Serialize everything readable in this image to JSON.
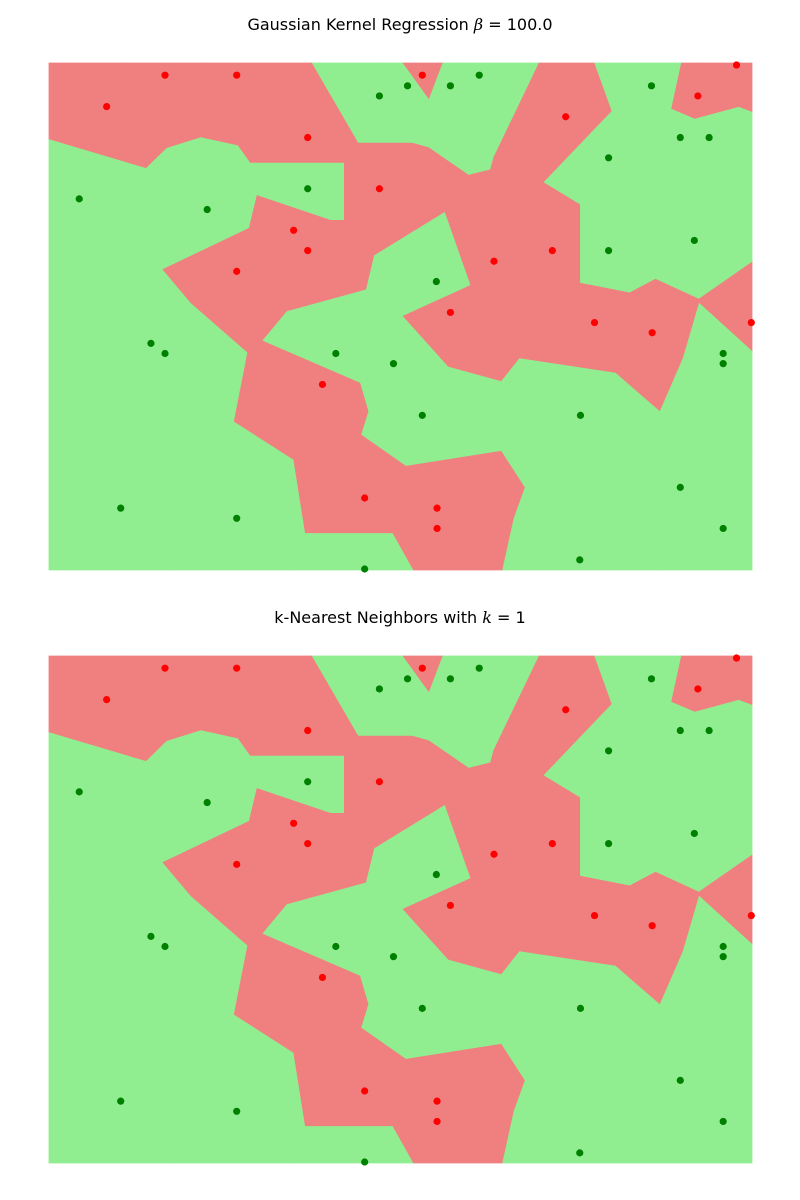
{
  "colors": {
    "class_red_region": "#f08080",
    "class_green_region": "#90ee90",
    "class_red_point": "#ff0000",
    "class_green_point": "#008000"
  },
  "chart_data": [
    {
      "type": "scatter",
      "title_prefix": "Gaussian Kernel Regression ",
      "title_symbol": "β",
      "title_suffix": " = 100.0",
      "xlabel": "",
      "ylabel": "",
      "axes_visible": false,
      "background": "decision-regions",
      "xlim": [
        0,
        1
      ],
      "ylim": [
        0,
        1
      ],
      "series": [
        {
          "class": "red",
          "points": [
            [
              0.165,
              0.976
            ],
            [
              0.267,
              0.976
            ],
            [
              0.531,
              0.976
            ],
            [
              0.978,
              0.996
            ],
            [
              0.082,
              0.914
            ],
            [
              0.923,
              0.935
            ],
            [
              0.735,
              0.894
            ],
            [
              0.368,
              0.853
            ],
            [
              0.47,
              0.752
            ],
            [
              0.348,
              0.67
            ],
            [
              0.368,
              0.63
            ],
            [
              0.716,
              0.63
            ],
            [
              0.633,
              0.609
            ],
            [
              0.267,
              0.589
            ],
            [
              0.571,
              0.508
            ],
            [
              0.776,
              0.488
            ],
            [
              0.858,
              0.468
            ],
            [
              0.999,
              0.488
            ],
            [
              0.389,
              0.366
            ],
            [
              0.449,
              0.142
            ],
            [
              0.552,
              0.122
            ],
            [
              0.552,
              0.082
            ]
          ]
        },
        {
          "class": "green",
          "points": [
            [
              0.47,
              0.935
            ],
            [
              0.51,
              0.955
            ],
            [
              0.571,
              0.955
            ],
            [
              0.612,
              0.976
            ],
            [
              0.857,
              0.955
            ],
            [
              0.898,
              0.853
            ],
            [
              0.939,
              0.853
            ],
            [
              0.796,
              0.813
            ],
            [
              0.368,
              0.752
            ],
            [
              0.043,
              0.732
            ],
            [
              0.225,
              0.711
            ],
            [
              0.796,
              0.63
            ],
            [
              0.918,
              0.65
            ],
            [
              0.551,
              0.569
            ],
            [
              0.145,
              0.447
            ],
            [
              0.165,
              0.427
            ],
            [
              0.408,
              0.427
            ],
            [
              0.49,
              0.407
            ],
            [
              0.959,
              0.427
            ],
            [
              0.959,
              0.407
            ],
            [
              0.531,
              0.305
            ],
            [
              0.756,
              0.305
            ],
            [
              0.898,
              0.163
            ],
            [
              0.102,
              0.122
            ],
            [
              0.267,
              0.102
            ],
            [
              0.959,
              0.082
            ],
            [
              0.755,
              0.02
            ],
            [
              0.449,
              0.002
            ]
          ]
        }
      ]
    },
    {
      "type": "scatter",
      "title_prefix": "k-Nearest Neighbors with ",
      "title_symbol": "k",
      "title_suffix": " = 1",
      "xlabel": "",
      "ylabel": "",
      "axes_visible": false,
      "background": "decision-regions",
      "xlim": [
        0,
        1
      ],
      "ylim": [
        0,
        1
      ],
      "series": [
        {
          "class": "red",
          "points": [
            [
              0.165,
              0.976
            ],
            [
              0.267,
              0.976
            ],
            [
              0.531,
              0.976
            ],
            [
              0.978,
              0.996
            ],
            [
              0.082,
              0.914
            ],
            [
              0.923,
              0.935
            ],
            [
              0.735,
              0.894
            ],
            [
              0.368,
              0.853
            ],
            [
              0.47,
              0.752
            ],
            [
              0.348,
              0.67
            ],
            [
              0.368,
              0.63
            ],
            [
              0.716,
              0.63
            ],
            [
              0.633,
              0.609
            ],
            [
              0.267,
              0.589
            ],
            [
              0.571,
              0.508
            ],
            [
              0.776,
              0.488
            ],
            [
              0.858,
              0.468
            ],
            [
              0.999,
              0.488
            ],
            [
              0.389,
              0.366
            ],
            [
              0.449,
              0.142
            ],
            [
              0.552,
              0.122
            ],
            [
              0.552,
              0.082
            ]
          ]
        },
        {
          "class": "green",
          "points": [
            [
              0.47,
              0.935
            ],
            [
              0.51,
              0.955
            ],
            [
              0.571,
              0.955
            ],
            [
              0.612,
              0.976
            ],
            [
              0.857,
              0.955
            ],
            [
              0.898,
              0.853
            ],
            [
              0.939,
              0.853
            ],
            [
              0.796,
              0.813
            ],
            [
              0.368,
              0.752
            ],
            [
              0.043,
              0.732
            ],
            [
              0.225,
              0.711
            ],
            [
              0.796,
              0.63
            ],
            [
              0.918,
              0.65
            ],
            [
              0.551,
              0.569
            ],
            [
              0.145,
              0.447
            ],
            [
              0.165,
              0.427
            ],
            [
              0.408,
              0.427
            ],
            [
              0.49,
              0.407
            ],
            [
              0.959,
              0.427
            ],
            [
              0.959,
              0.407
            ],
            [
              0.531,
              0.305
            ],
            [
              0.756,
              0.305
            ],
            [
              0.898,
              0.163
            ],
            [
              0.102,
              0.122
            ],
            [
              0.267,
              0.102
            ],
            [
              0.959,
              0.082
            ],
            [
              0.755,
              0.02
            ],
            [
              0.449,
              0.002
            ]
          ]
        }
      ]
    }
  ]
}
